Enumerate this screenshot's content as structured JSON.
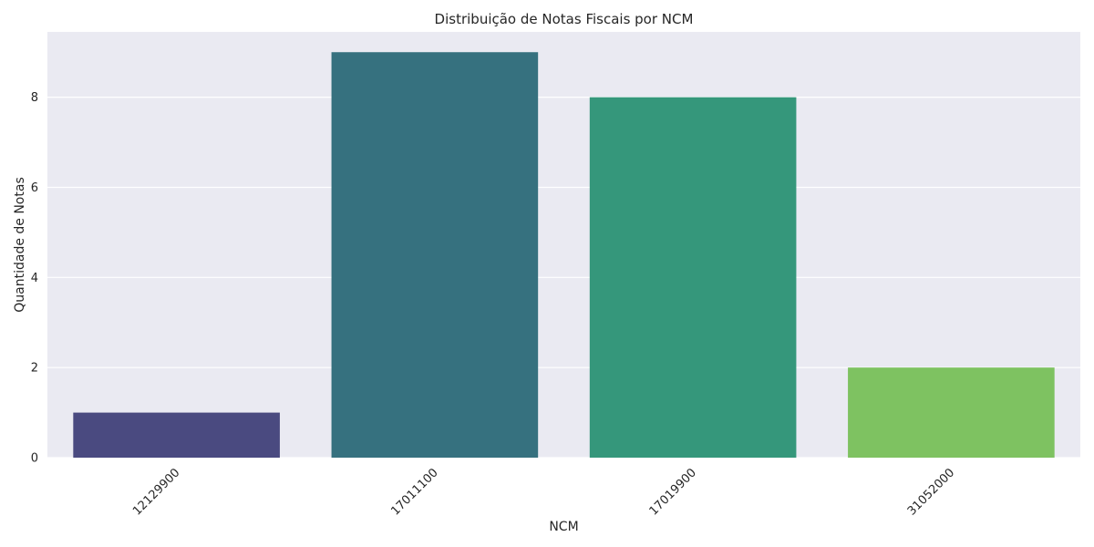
{
  "chart_data": {
    "type": "bar",
    "title": "Distribuição de Notas Fiscais por NCM",
    "xlabel": "NCM",
    "ylabel": "Quantidade de Notas",
    "categories": [
      "12129900",
      "17011100",
      "17019900",
      "31052000"
    ],
    "values": [
      1,
      9,
      8,
      2
    ],
    "colors": [
      "#4a4a80",
      "#36717f",
      "#35977b",
      "#7ec261"
    ],
    "ylim": [
      0,
      9.45
    ],
    "yticks": [
      0,
      2,
      4,
      6,
      8
    ],
    "grid": true,
    "background": "#eaeaf2"
  }
}
